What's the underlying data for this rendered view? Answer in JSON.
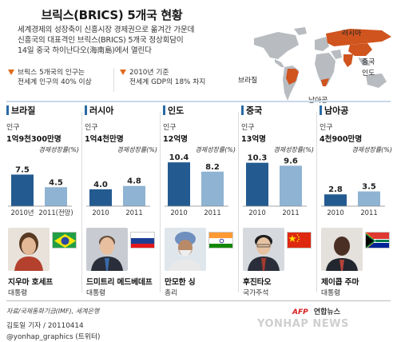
{
  "title": "브릭스(BRICS) 5개국 현황",
  "lead": {
    "line1": "세계경제의 성장축이 신흥시장 경제권으로 옮겨간 가운데",
    "line2": "신흥국의 대표격인 브릭스(BRICS) 5개국 정상회담이",
    "line3": "14일 중국 하이난다오(海南島)에서 열린다"
  },
  "notes": [
    {
      "line1": "브릭스 5개국의 인구는",
      "line2": "전세계 인구의 40% 이상"
    },
    {
      "line1": "2010년 기준",
      "line2": "전세계 GDP의 18% 차지"
    }
  ],
  "map_labels": {
    "russia": "러시아",
    "china": "중국",
    "india": "인도",
    "brazil": "브라질",
    "south_africa": "남아공"
  },
  "colors": {
    "bar_2010": "#235b91",
    "bar_2011": "#8fb3d2",
    "map_highlight": "#d0541e",
    "map_base": "#b8bcc1",
    "accent": "#e06a1b"
  },
  "common": {
    "pop_label": "인구",
    "growth_label": "경제성장률(%)"
  },
  "countries": [
    {
      "name": "브라질",
      "population": "1억9천300만명",
      "leader_name": "지우마 호세프",
      "leader_title": "대통령",
      "flag": "brazil-flag",
      "chart_data": {
        "type": "bar",
        "categories": [
          "2010년",
          "2011(전망)"
        ],
        "values": [
          7.5,
          4.5
        ],
        "value_labels": [
          "7.5",
          "4.5"
        ],
        "ylabel": "경제성장률(%)"
      }
    },
    {
      "name": "러시아",
      "population": "1억4천만명",
      "leader_name": "드미트리 메드베데프",
      "leader_title": "대통령",
      "flag": "russia-flag",
      "chart_data": {
        "type": "bar",
        "categories": [
          "2010",
          "2011"
        ],
        "values": [
          4.0,
          4.8
        ],
        "value_labels": [
          "4.0",
          "4.8"
        ],
        "ylabel": "경제성장률(%)"
      }
    },
    {
      "name": "인도",
      "population": "12억명",
      "leader_name": "만모한 싱",
      "leader_title": "총리",
      "flag": "india-flag",
      "chart_data": {
        "type": "bar",
        "categories": [
          "2010",
          "2011"
        ],
        "values": [
          10.4,
          8.2
        ],
        "value_labels": [
          "10.4",
          "8.2"
        ],
        "ylabel": "경제성장률(%)"
      }
    },
    {
      "name": "중국",
      "population": "13억명",
      "leader_name": "후진타오",
      "leader_title": "국가주석",
      "flag": "china-flag",
      "chart_data": {
        "type": "bar",
        "categories": [
          "2010",
          "2011"
        ],
        "values": [
          10.3,
          9.6
        ],
        "value_labels": [
          "10.3",
          "9.6"
        ],
        "ylabel": "경제성장률(%)"
      }
    },
    {
      "name": "남아공",
      "population": "4천900만명",
      "leader_name": "제이콥 주마",
      "leader_title": "대통령",
      "flag": "south-africa-flag",
      "chart_data": {
        "type": "bar",
        "categories": [
          "2010",
          "2011"
        ],
        "values": [
          2.8,
          3.5
        ],
        "value_labels": [
          "2.8",
          "3.5"
        ],
        "ylabel": "경제성장률(%)"
      }
    }
  ],
  "source": "자료/국제통화기금(IMF), 세계은행",
  "credit": {
    "line1": "김토일 기자 / 20110414",
    "line2": "@yonhap_graphics (트위터)"
  },
  "agency": {
    "afp": "AFP",
    "yonhap": "연합뉴스",
    "watermark": "YONHAP NEWS"
  }
}
